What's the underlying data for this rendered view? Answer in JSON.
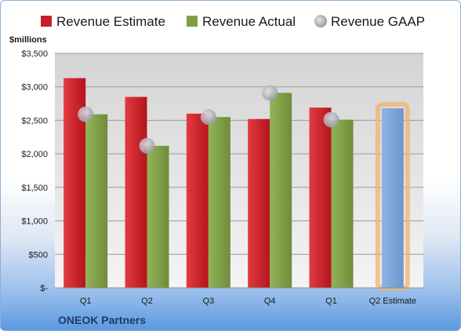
{
  "company": "ONEOK Partners",
  "colors": {
    "estimate": "#c8202a",
    "actual": "#7f9f45",
    "gaap": "#b4b4bc",
    "forecast": "#7ea6d8",
    "forecast_glow": "#f2b36e",
    "plot_bg_top": "#d9d9d9",
    "plot_bg_bottom": "#f2f2f2"
  },
  "chart_data": {
    "type": "bar",
    "ylabel": "$millions",
    "ylim": [
      0,
      3500
    ],
    "y_ticks": [
      {
        "value": 0,
        "label": "$-"
      },
      {
        "value": 500,
        "label": "$500"
      },
      {
        "value": 1000,
        "label": "$1,000"
      },
      {
        "value": 1500,
        "label": "$1,500"
      },
      {
        "value": 2000,
        "label": "$2,000"
      },
      {
        "value": 2500,
        "label": "$2,500"
      },
      {
        "value": 3000,
        "label": "$3,000"
      },
      {
        "value": 3500,
        "label": "$3,500"
      }
    ],
    "categories": [
      "Q1",
      "Q2",
      "Q3",
      "Q4",
      "Q1",
      "Q2 Estimate"
    ],
    "grid": true,
    "legend_position": "top",
    "series": [
      {
        "name": "Revenue Estimate",
        "kind": "bar",
        "values": [
          3130,
          2850,
          2600,
          2520,
          2690,
          null
        ]
      },
      {
        "name": "Revenue Actual",
        "kind": "bar",
        "values": [
          2590,
          2120,
          2550,
          2910,
          2510,
          2680
        ]
      },
      {
        "name": "Revenue GAAP",
        "kind": "marker",
        "values": [
          2590,
          2120,
          2550,
          2910,
          2510,
          null
        ]
      }
    ]
  }
}
